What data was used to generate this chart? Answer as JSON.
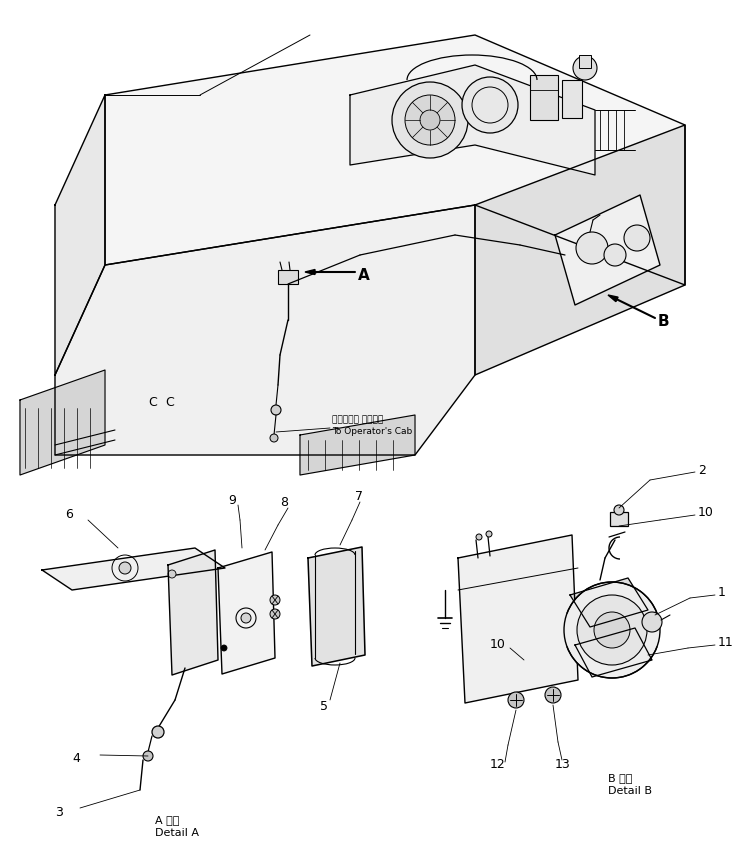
{
  "bg_color": "#ffffff",
  "line_color": "#000000",
  "fig_width": 7.48,
  "fig_height": 8.6,
  "dpi": 100,
  "detail_a_title_ja": "A 詳細",
  "detail_a_title_en": "Detail A",
  "detail_b_title_ja": "B 詳細",
  "detail_b_title_en": "Detail B",
  "label_A": "A",
  "label_B": "B",
  "operator_ja": "オペレータ キャブへ",
  "operator_en": "To Operator's Cab"
}
